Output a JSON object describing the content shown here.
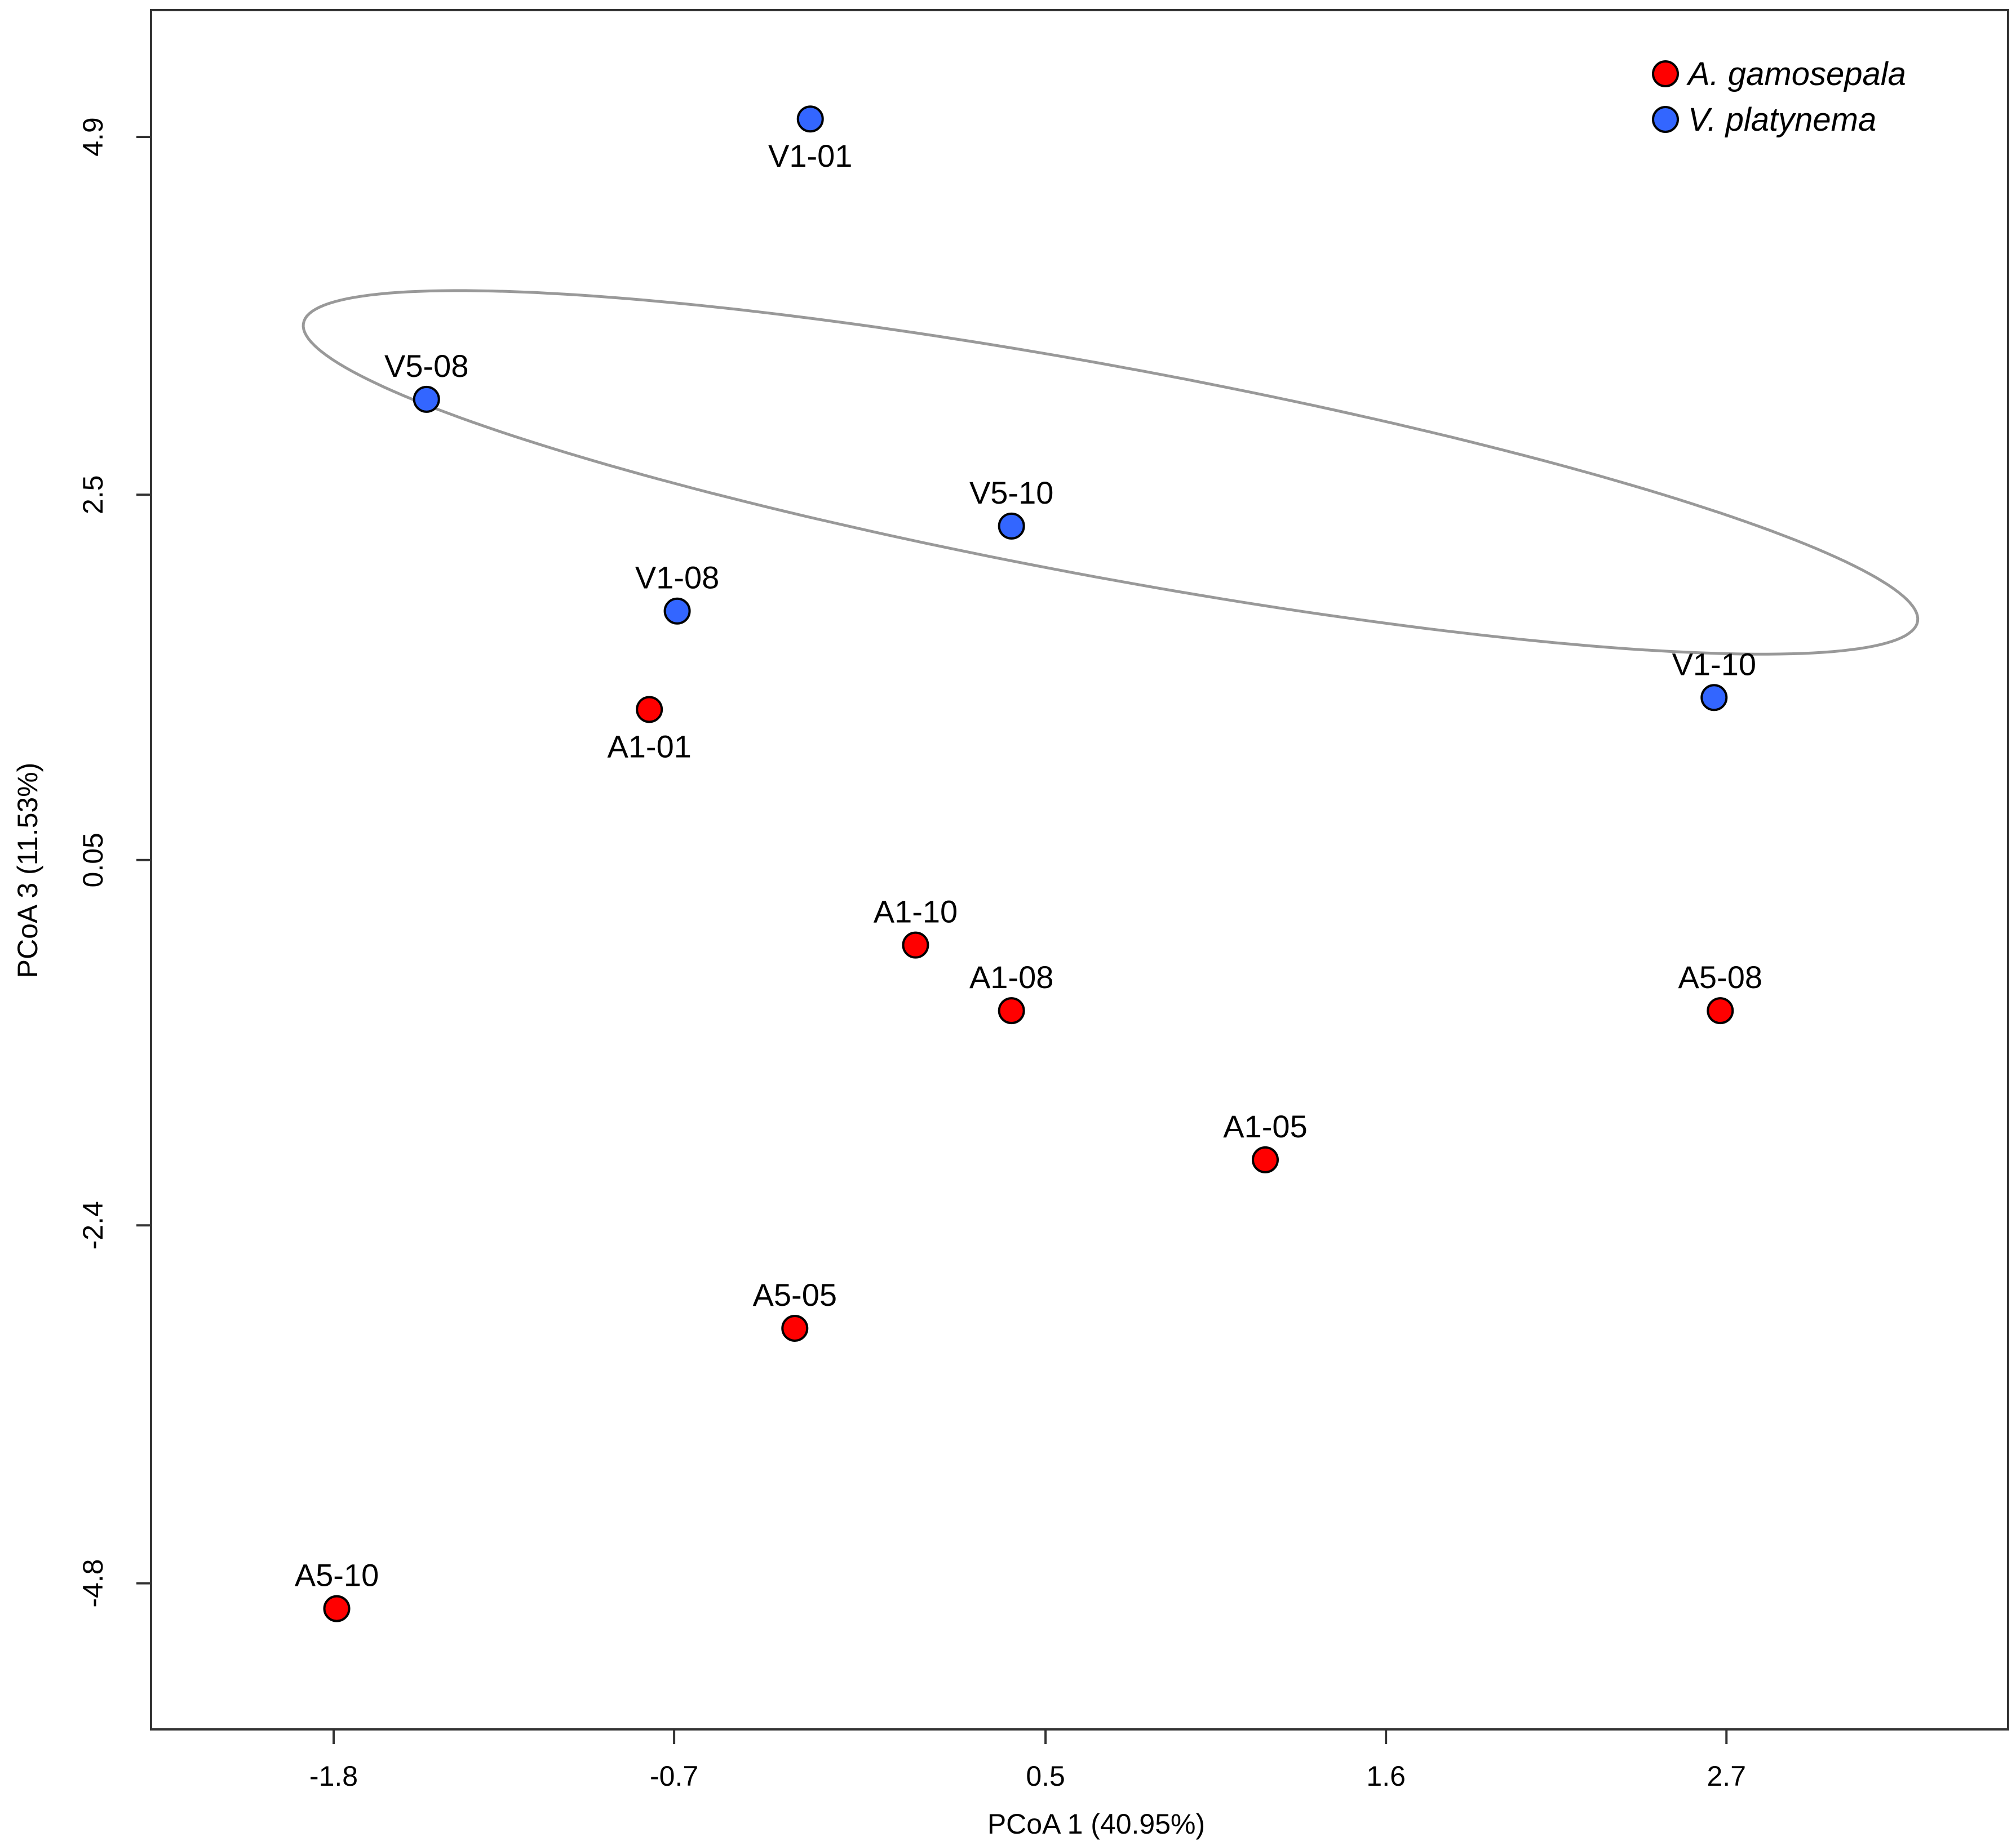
{
  "chart_data": {
    "type": "scatter",
    "title": "",
    "xlabel": "PCoA 1 (40.95%)",
    "ylabel": "PCoA 3 (11.53%)",
    "xlim": [
      -2.39,
      3.61
    ],
    "ylim": [
      -5.78,
      5.75
    ],
    "xticks": [
      {
        "value": -1.8,
        "label": "-1.8"
      },
      {
        "value": -0.7,
        "label": "-0.7"
      },
      {
        "value": 0.5,
        "label": "0.5"
      },
      {
        "value": 1.6,
        "label": "1.6"
      },
      {
        "value": 2.7,
        "label": "2.7"
      }
    ],
    "yticks": [
      {
        "value": 4.9,
        "label": "4.9"
      },
      {
        "value": 2.5,
        "label": "2.5"
      },
      {
        "value": 0.05,
        "label": "0.05"
      },
      {
        "value": -2.4,
        "label": "-2.4"
      },
      {
        "value": -4.8,
        "label": "-4.8"
      }
    ],
    "grid": false,
    "legend_position": "top-right",
    "series": [
      {
        "name": "A. gamosepala",
        "color": "#ff0000",
        "points": [
          {
            "label": "A1-01",
            "x": -0.78,
            "y": 1.06,
            "label_side": "below"
          },
          {
            "label": "A1-10",
            "x": 0.08,
            "y": -0.52,
            "label_side": "above"
          },
          {
            "label": "A1-08",
            "x": 0.39,
            "y": -0.96,
            "label_side": "above"
          },
          {
            "label": "A5-08",
            "x": 2.68,
            "y": -0.96,
            "label_side": "above"
          },
          {
            "label": "A1-05",
            "x": 1.21,
            "y": -1.96,
            "label_side": "above"
          },
          {
            "label": "A5-05",
            "x": -0.31,
            "y": -3.09,
            "label_side": "above"
          },
          {
            "label": "A5-10",
            "x": -1.79,
            "y": -4.97,
            "label_side": "above"
          }
        ]
      },
      {
        "name": "V. platynema",
        "color": "#3366ff",
        "points": [
          {
            "label": "V1-01",
            "x": -0.26,
            "y": 5.02,
            "label_side": "below"
          },
          {
            "label": "V5-08",
            "x": -1.5,
            "y": 3.14,
            "label_side": "above"
          },
          {
            "label": "V5-10",
            "x": 0.39,
            "y": 2.29,
            "label_side": "above"
          },
          {
            "label": "V1-08",
            "x": -0.69,
            "y": 1.72,
            "label_side": "above"
          },
          {
            "label": "V1-10",
            "x": 2.66,
            "y": 1.14,
            "label_side": "above"
          }
        ]
      }
    ],
    "ellipse": {
      "series": "V. platynema",
      "color": "#999999",
      "center": [
        0.71,
        2.65
      ],
      "semi_axis_major": 2.8,
      "semi_axis_minor": 0.67,
      "angle_deg": -22
    }
  }
}
